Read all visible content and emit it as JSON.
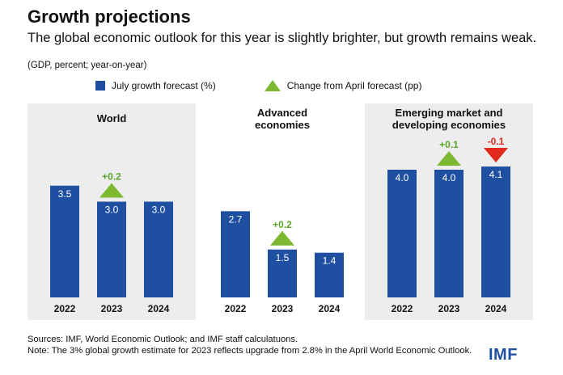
{
  "header": {
    "title": "Growth projections",
    "subtitle": "The global economic outlook for this year is slightly brighter, but growth remains weak.",
    "units": "(GDP, percent; year-on-year)"
  },
  "legend": {
    "bars": "July growth forecast (%)",
    "triangles": "Change from April forecast (pp)"
  },
  "colors": {
    "bar": "#1f4fa0",
    "panel": "#ededed",
    "up": "#7cb931",
    "down": "#e2271b",
    "up_text": "#5aa42a",
    "down_text": "#e2271b"
  },
  "chart_data": [
    {
      "type": "bar",
      "title": "World",
      "categories": [
        "2022",
        "2023",
        "2024"
      ],
      "values": [
        3.5,
        3.0,
        3.0
      ],
      "value_labels": [
        "3.5",
        "3.0",
        "3.0"
      ],
      "change_from_april": [
        null,
        0.2,
        null
      ],
      "change_labels": [
        "",
        "+0.2",
        ""
      ],
      "shaded": true
    },
    {
      "type": "bar",
      "title": "Advanced economies",
      "categories": [
        "2022",
        "2023",
        "2024"
      ],
      "values": [
        2.7,
        1.5,
        1.4
      ],
      "value_labels": [
        "2.7",
        "1.5",
        "1.4"
      ],
      "change_from_april": [
        null,
        0.2,
        null
      ],
      "change_labels": [
        "",
        "+0.2",
        ""
      ],
      "shaded": false
    },
    {
      "type": "bar",
      "title": "Emerging market and developing economies",
      "categories": [
        "2022",
        "2023",
        "2024"
      ],
      "values": [
        4.0,
        4.0,
        4.1
      ],
      "value_labels": [
        "4.0",
        "4.0",
        "4.1"
      ],
      "change_from_april": [
        null,
        0.1,
        -0.1
      ],
      "change_labels": [
        "",
        "+0.1",
        "-0.1"
      ],
      "shaded": true
    }
  ],
  "footer": {
    "sources": "Sources: IMF, World Economic Outlook; and IMF staff calculatuons.",
    "note": "Note: The 3% global growth estimate for 2023 reflects upgrade from 2.8% in the April World Economic Outlook.",
    "logo": "IMF"
  }
}
